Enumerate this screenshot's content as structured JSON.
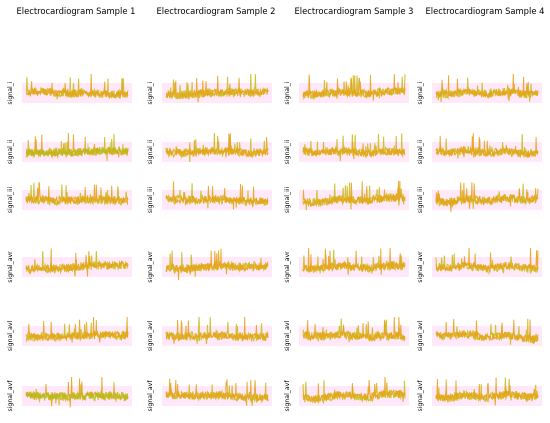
{
  "chart_data": {
    "type": "line",
    "columns": [
      "Electrocardiogram Sample 1",
      "Electrocardiogram Sample 2",
      "Electrocardiogram Sample 3",
      "Electrocardiogram Sample 4"
    ],
    "rows": [
      "signal_i",
      "signal_ii",
      "signal_iii",
      "signal_avr",
      "signal_avl",
      "signal_avf"
    ],
    "colors": {
      "band": "#ffd6f4",
      "trace_primary": "#e8a21a",
      "trace_secondary": "#c9bf1c",
      "trace_accent": "#7ed321"
    },
    "grid": false,
    "axes_visible": false
  }
}
